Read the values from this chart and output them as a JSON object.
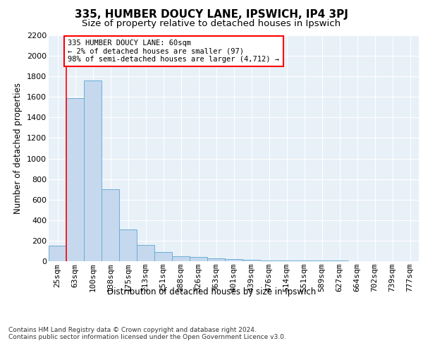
{
  "title1": "335, HUMBER DOUCY LANE, IPSWICH, IP4 3PJ",
  "title2": "Size of property relative to detached houses in Ipswich",
  "xlabel": "Distribution of detached houses by size in Ipswich",
  "ylabel": "Number of detached properties",
  "footer": "Contains HM Land Registry data © Crown copyright and database right 2024.\nContains public sector information licensed under the Open Government Licence v3.0.",
  "categories": [
    "25sqm",
    "63sqm",
    "100sqm",
    "138sqm",
    "175sqm",
    "213sqm",
    "251sqm",
    "288sqm",
    "326sqm",
    "363sqm",
    "401sqm",
    "439sqm",
    "476sqm",
    "514sqm",
    "551sqm",
    "589sqm",
    "627sqm",
    "664sqm",
    "702sqm",
    "739sqm",
    "777sqm"
  ],
  "values": [
    150,
    1590,
    1760,
    700,
    310,
    155,
    88,
    50,
    38,
    25,
    18,
    14,
    10,
    8,
    6,
    5,
    4,
    3,
    3,
    2,
    2
  ],
  "bar_color": "#c5d8ee",
  "bar_edge_color": "#6baed6",
  "vline_color": "red",
  "annotation_text": "335 HUMBER DOUCY LANE: 60sqm\n← 2% of detached houses are smaller (97)\n98% of semi-detached houses are larger (4,712) →",
  "annotation_box_color": "white",
  "annotation_box_edge_color": "red",
  "ylim": [
    0,
    2200
  ],
  "yticks": [
    0,
    200,
    400,
    600,
    800,
    1000,
    1200,
    1400,
    1600,
    1800,
    2000,
    2200
  ],
  "plot_bg_color": "#e8f0f8",
  "grid_color": "#ffffff",
  "title1_fontsize": 11,
  "title2_fontsize": 9.5,
  "axis_label_fontsize": 8.5,
  "tick_fontsize": 8,
  "annotation_fontsize": 7.5,
  "footer_fontsize": 6.5
}
